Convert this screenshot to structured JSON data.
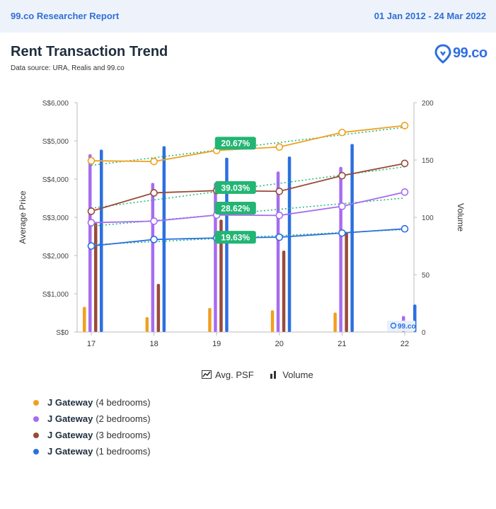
{
  "header": {
    "brand": "99.co Researcher Report",
    "date_range": "01 Jan 2012 - 24 Mar 2022"
  },
  "report": {
    "title": "Rent Transaction Trend",
    "source": "Data source: URA, Realis and 99.co"
  },
  "logo": {
    "text": "99.co"
  },
  "watermark": {
    "text": "99.co"
  },
  "toggles": [
    {
      "label": "Avg. PSF",
      "icon": "line-chart-icon"
    },
    {
      "label": "Volume",
      "icon": "bar-chart-icon"
    }
  ],
  "colors": {
    "orange": "#f0a020",
    "purple": "#a66cf0",
    "brown": "#9a4a3a",
    "blue": "#2d6fe0",
    "badge": "#22b573",
    "trend": "#22b573"
  },
  "chart_data": {
    "type": "bar+line",
    "ylabel_left": "Average Price",
    "ylabel_right": "Volume",
    "categories": [
      "17",
      "18",
      "19",
      "20",
      "21",
      "22"
    ],
    "y_left": {
      "range": [
        0,
        6000
      ],
      "ticks": [
        "S$0",
        "S$1,000",
        "S$2,000",
        "S$3,000",
        "S$4,000",
        "S$5,000",
        "S$6,000"
      ],
      "tick_values": [
        0,
        1000,
        2000,
        3000,
        4000,
        5000,
        6000
      ]
    },
    "y_right": {
      "range": [
        0,
        200
      ],
      "ticks": [
        "0",
        "50",
        "100",
        "150",
        "200"
      ],
      "tick_values": [
        0,
        50,
        100,
        150,
        200
      ]
    },
    "legend_placement": "bottom-left",
    "series": [
      {
        "name": "J Gateway",
        "bedrooms": "(4 bedrooms)",
        "color": "#f0a020",
        "price": [
          4480,
          4460,
          4750,
          4840,
          5220,
          5400
        ],
        "volume": [
          22,
          13,
          21,
          19,
          17,
          0
        ],
        "change": "20.67%"
      },
      {
        "name": "J Gateway",
        "bedrooms": "(2 bedrooms)",
        "color": "#a66cf0",
        "price": [
          2860,
          2900,
          3060,
          3050,
          3290,
          3660
        ],
        "volume": [
          155,
          130,
          130,
          140,
          144,
          14
        ],
        "change": "28.62%"
      },
      {
        "name": "J Gateway",
        "bedrooms": "(3 bedrooms)",
        "color": "#9a4a3a",
        "price": [
          3160,
          3640,
          3700,
          3680,
          4090,
          4410
        ],
        "volume": [
          95,
          42,
          98,
          71,
          87,
          0
        ],
        "change": "39.03%"
      },
      {
        "name": "J Gateway",
        "bedrooms": "(1 bedrooms)",
        "color": "#2d6fe0",
        "price": [
          2250,
          2420,
          2460,
          2480,
          2590,
          2700
        ],
        "volume": [
          159,
          162,
          152,
          153,
          164,
          24
        ],
        "change": "19.63%"
      }
    ],
    "badges": [
      {
        "text": "20.67%",
        "x": 19.3,
        "y": 4940
      },
      {
        "text": "39.03%",
        "x": 19.3,
        "y": 3780
      },
      {
        "text": "28.62%",
        "x": 19.3,
        "y": 3240
      },
      {
        "text": "19.63%",
        "x": 19.3,
        "y": 2480
      }
    ]
  }
}
